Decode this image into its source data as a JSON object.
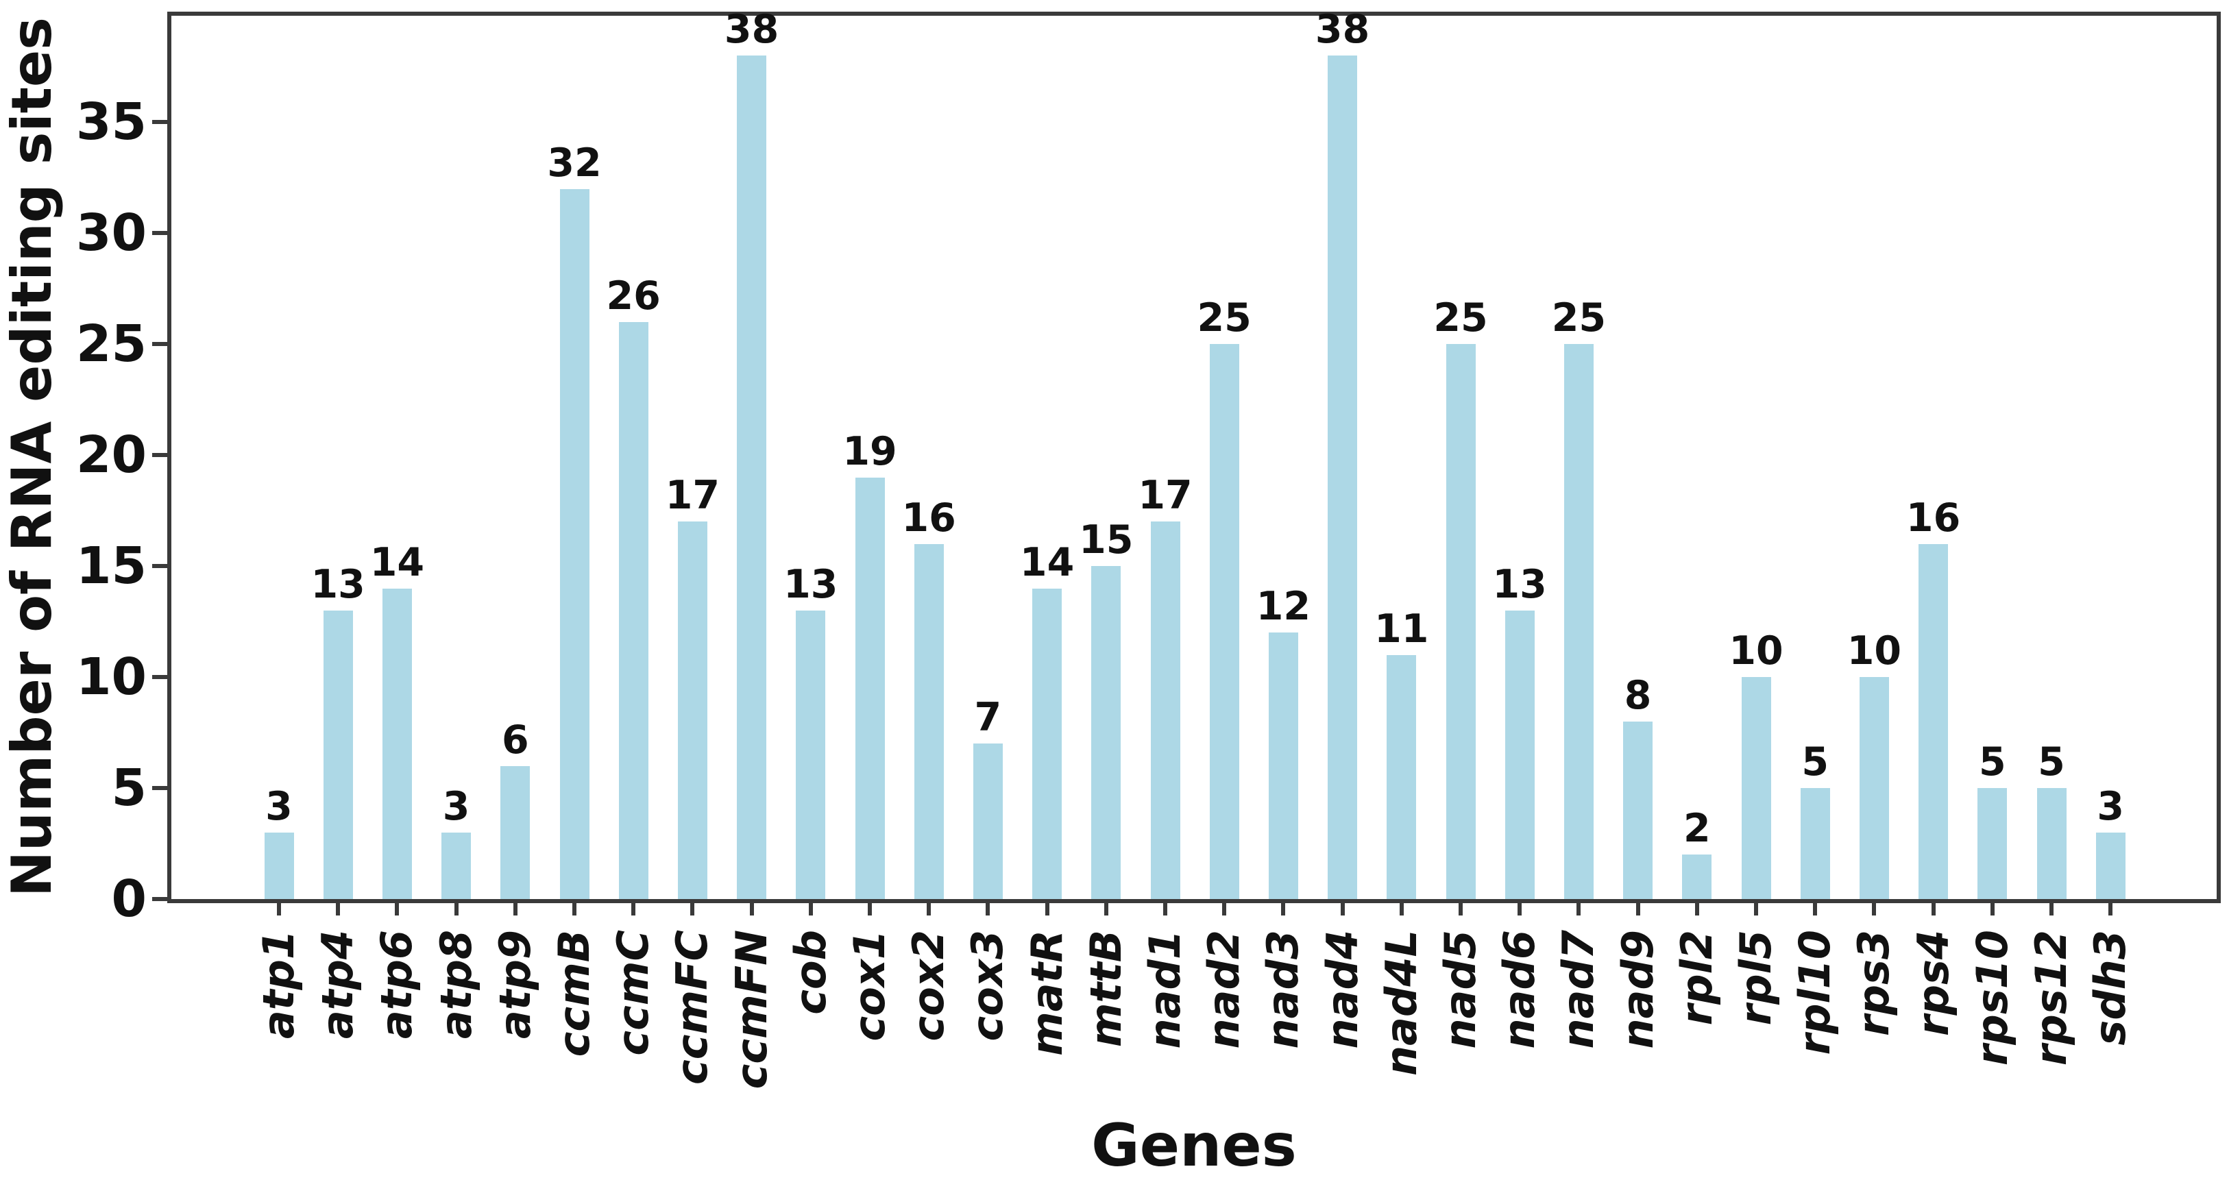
{
  "chart_data": {
    "type": "bar",
    "title": "",
    "xlabel": "Genes",
    "ylabel": "Number of RNA editing sites",
    "categories": [
      "atp1",
      "atp4",
      "atp6",
      "atp8",
      "atp9",
      "ccmB",
      "ccmC",
      "ccmFC",
      "ccmFN",
      "cob",
      "cox1",
      "cox2",
      "cox3",
      "matR",
      "mttB",
      "nad1",
      "nad2",
      "nad3",
      "nad4",
      "nad4L",
      "nad5",
      "nad6",
      "nad7",
      "nad9",
      "rpl2",
      "rpl5",
      "rpl10",
      "rps3",
      "rps4",
      "rps10",
      "rps12",
      "sdh3"
    ],
    "values": [
      3,
      13,
      14,
      3,
      6,
      32,
      26,
      17,
      38,
      13,
      19,
      16,
      7,
      14,
      15,
      17,
      25,
      12,
      38,
      11,
      25,
      13,
      25,
      8,
      2,
      10,
      5,
      10,
      16,
      5,
      5,
      3
    ],
    "value_labels_shown": true,
    "yticks": [
      0,
      5,
      10,
      15,
      20,
      25,
      30,
      35
    ],
    "ylim": [
      0,
      39.8
    ],
    "grid": false,
    "bar_color": "#add8e6",
    "axis_color": "#3a3a3a",
    "text_color": "#111111"
  }
}
